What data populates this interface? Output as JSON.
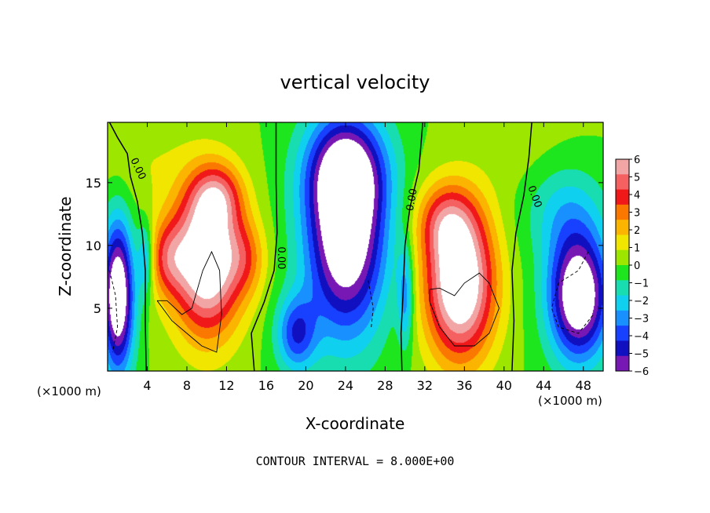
{
  "chart_data": {
    "type": "heatmap",
    "title": "vertical velocity",
    "xlabel": "X-coordinate",
    "ylabel": "Z-coordinate",
    "x_unit_left": "(×1000 m)",
    "x_unit_right": "(×1000 m)",
    "xlim": [
      0,
      50
    ],
    "ylim": [
      0,
      19.8
    ],
    "x_ticks": [
      4,
      8,
      12,
      16,
      20,
      24,
      28,
      32,
      36,
      40,
      44,
      48
    ],
    "y_ticks": [
      5,
      10,
      15
    ],
    "colorbar": {
      "ticks": [
        6,
        5,
        4,
        3,
        2,
        1,
        0,
        -1,
        -2,
        -3,
        -4,
        -5,
        -6
      ],
      "range": [
        -6,
        6
      ],
      "colors": [
        "#f2a5a5",
        "#f56060",
        "#f01818",
        "#fb7800",
        "#fbb400",
        "#f0e600",
        "#9ce600",
        "#1ee61e",
        "#18ddb0",
        "#10d0f0",
        "#1890ff",
        "#1840ff",
        "#1010c0",
        "#7818b4"
      ],
      "out_of_range_color": "#ffffff"
    },
    "contour_labels": [
      "0.00",
      "0.00",
      "0.00",
      "0.00"
    ],
    "footer": "CONTOUR INTERVAL = 8.000E+00",
    "blobs": [
      {
        "x": 3,
        "z": 17,
        "sx": 5,
        "sz": 5,
        "a": 0.8
      },
      {
        "x": 10,
        "z": 9,
        "sx": 3.5,
        "sz": 6,
        "a": 8
      },
      {
        "x": 11,
        "z": 14,
        "sx": 2.5,
        "sz": 2.5,
        "a": 3
      },
      {
        "x": 6,
        "z": 9,
        "sx": 2,
        "sz": 3,
        "a": 3
      },
      {
        "x": 14,
        "z": 9,
        "sx": 2,
        "sz": 3,
        "a": 2
      },
      {
        "x": 1,
        "z": 6,
        "sx": 1.6,
        "sz": 6,
        "a": -8
      },
      {
        "x": 3.8,
        "z": 9,
        "sx": 0.8,
        "sz": 3,
        "a": -3
      },
      {
        "x": 24,
        "z": 11,
        "sx": 4,
        "sz": 8,
        "a": -8
      },
      {
        "x": 24,
        "z": 16,
        "sx": 4,
        "sz": 4,
        "a": -4
      },
      {
        "x": 19,
        "z": 3,
        "sx": 2,
        "sz": 3,
        "a": -4
      },
      {
        "x": 35.5,
        "z": 7,
        "sx": 3.5,
        "sz": 6,
        "a": 8
      },
      {
        "x": 34,
        "z": 12,
        "sx": 3,
        "sz": 3,
        "a": 3
      },
      {
        "x": 30,
        "z": 6,
        "sx": 0.8,
        "sz": 4,
        "a": -3
      },
      {
        "x": 47.5,
        "z": 6,
        "sx": 3,
        "sz": 5,
        "a": -8
      },
      {
        "x": 46,
        "z": 13,
        "sx": 4,
        "sz": 4,
        "a": -2
      },
      {
        "x": 43,
        "z": 17,
        "sx": 6,
        "sz": 4,
        "a": 0.5
      }
    ]
  }
}
